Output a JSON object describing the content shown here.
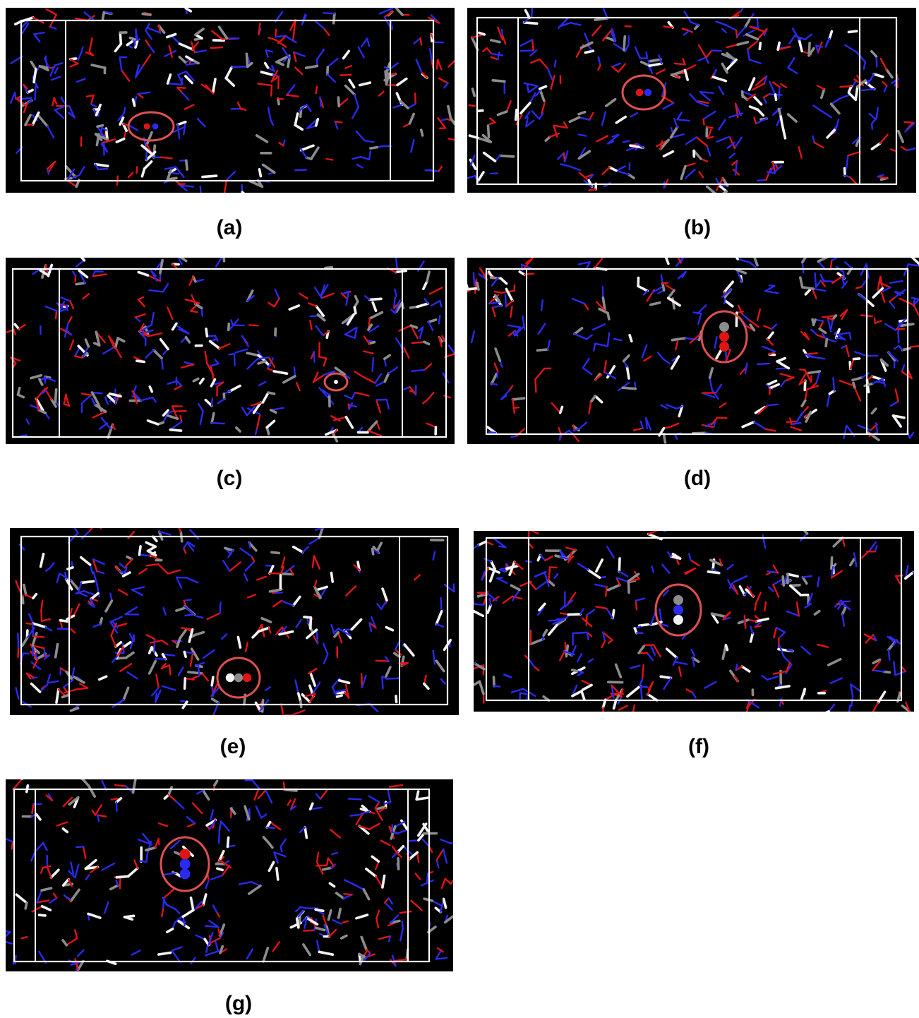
{
  "figure": {
    "colors": {
      "background": "#000000",
      "cell_box": "#ffffff",
      "nitrogen": "#2a2af0",
      "oxygen": "#e11414",
      "carbon": "#8c8c8c",
      "hydrogen": "#f2f2f2",
      "highlight_circle": "#e05050"
    },
    "panels": [
      {
        "id": "a",
        "label": "(a)",
        "circled_molecule_atoms": [
          "oxygen",
          "nitrogen"
        ]
      },
      {
        "id": "b",
        "label": "(b)",
        "circled_molecule_atoms": [
          "oxygen",
          "nitrogen"
        ]
      },
      {
        "id": "c",
        "label": "(c)",
        "circled_molecule_atoms": [
          "hydrogen"
        ]
      },
      {
        "id": "d",
        "label": "(d)",
        "circled_molecule_atoms": [
          "carbon",
          "oxygen",
          "oxygen"
        ]
      },
      {
        "id": "e",
        "label": "(e)",
        "circled_molecule_atoms": [
          "hydrogen",
          "carbon",
          "oxygen"
        ]
      },
      {
        "id": "f",
        "label": "(f)",
        "circled_molecule_atoms": [
          "carbon",
          "nitrogen",
          "hydrogen"
        ]
      },
      {
        "id": "g",
        "label": "(g)",
        "circled_molecule_atoms": [
          "oxygen",
          "nitrogen",
          "nitrogen"
        ]
      }
    ]
  }
}
